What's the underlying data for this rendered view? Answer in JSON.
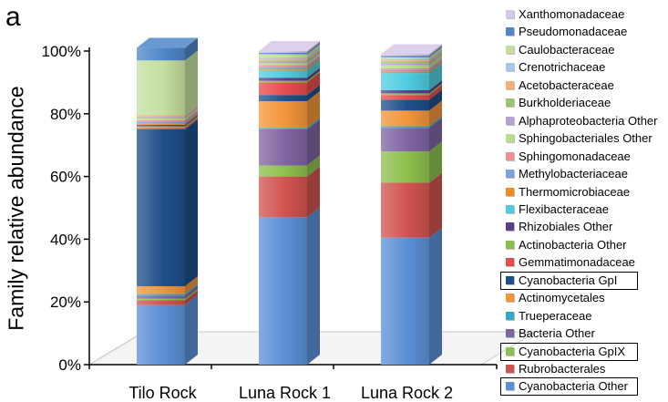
{
  "figure": {
    "panel_letter": "a"
  },
  "chart_data": {
    "type": "bar",
    "stacked": true,
    "style": "3d",
    "ylabel": "Family relative abundance",
    "xlabel": "",
    "ylim": [
      0,
      100
    ],
    "yticks": [
      "0%",
      "20%",
      "40%",
      "60%",
      "80%",
      "100%"
    ],
    "categories": [
      "Tilo Rock",
      "Luna Rock 1",
      "Luna Rock 2"
    ],
    "legend_position": "right",
    "series": [
      {
        "name": "Cyanobacteria Other",
        "color": "#5b8fd6",
        "values": [
          19.0,
          47.0,
          40.5
        ],
        "boxed": true
      },
      {
        "name": "Rubrobacterales",
        "color": "#d0534f",
        "values": [
          1.5,
          13.0,
          17.5
        ],
        "boxed": false
      },
      {
        "name": "Cyanobacteria GpIX",
        "color": "#8ebf4c",
        "values": [
          0.5,
          3.5,
          10.0
        ],
        "boxed": true
      },
      {
        "name": "Bacteria Other",
        "color": "#8064a2",
        "values": [
          1.0,
          11.5,
          7.5
        ],
        "boxed": false
      },
      {
        "name": "Trueperaceae",
        "color": "#31a9c9",
        "values": [
          0.5,
          0.5,
          0.5
        ],
        "boxed": false
      },
      {
        "name": "Actinomycetales",
        "color": "#f3943a",
        "values": [
          2.5,
          8.5,
          5.0
        ],
        "boxed": false
      },
      {
        "name": "Cyanobacteria GpI",
        "color": "#1f4f8b",
        "values": [
          50.0,
          2.0,
          3.5
        ],
        "boxed": true
      },
      {
        "name": "Gemmatimonadaceae",
        "color": "#e74c4c",
        "values": [
          0.5,
          4.0,
          1.5
        ],
        "boxed": false
      },
      {
        "name": "Actinobacteria Other",
        "color": "#88c04c",
        "values": [
          0.5,
          0.5,
          0.5
        ],
        "boxed": false
      },
      {
        "name": "Rhizobiales Other",
        "color": "#5b3f8c",
        "values": [
          0.5,
          1.0,
          1.0
        ],
        "boxed": false
      },
      {
        "name": "Flexibacteraceae",
        "color": "#4fcde0",
        "values": [
          0.0,
          2.5,
          5.5
        ],
        "boxed": false
      },
      {
        "name": "Thermomicrobiaceae",
        "color": "#f28a1e",
        "values": [
          0.5,
          0.5,
          0.5
        ],
        "boxed": false
      },
      {
        "name": "Methylobacteriaceae",
        "color": "#7ba4d8",
        "values": [
          0.5,
          0.5,
          0.5
        ],
        "boxed": false
      },
      {
        "name": "Sphingomonadaceae",
        "color": "#ef8f8f",
        "values": [
          0.5,
          0.5,
          0.5
        ],
        "boxed": false
      },
      {
        "name": "Sphingobacteriales Other",
        "color": "#bcdd8f",
        "values": [
          0.5,
          0.5,
          1.0
        ],
        "boxed": false
      },
      {
        "name": "Alphaproteobacteria Other",
        "color": "#b5a3d6",
        "values": [
          0.5,
          0.5,
          0.5
        ],
        "boxed": false
      },
      {
        "name": "Burkholderiaceae",
        "color": "#9bc46a",
        "values": [
          0.0,
          0.5,
          0.5
        ],
        "boxed": false
      },
      {
        "name": "Acetobacteraceae",
        "color": "#f5b07a",
        "values": [
          0.5,
          0.5,
          0.5
        ],
        "boxed": false
      },
      {
        "name": "Crenotrichaceae",
        "color": "#a9c6ec",
        "values": [
          0.0,
          0.5,
          0.5
        ],
        "boxed": false
      },
      {
        "name": "Caulobacteraceae",
        "color": "#c4dfa0",
        "values": [
          17.5,
          1.0,
          0.5
        ],
        "boxed": false
      },
      {
        "name": "Pseudomonadaceae",
        "color": "#4f87c8",
        "values": [
          4.0,
          0.5,
          0.5
        ],
        "boxed": false
      },
      {
        "name": "Xanthomonadaceae",
        "color": "#d8c8e8",
        "values": [
          0.0,
          0.5,
          0.5
        ],
        "boxed": false
      }
    ]
  }
}
